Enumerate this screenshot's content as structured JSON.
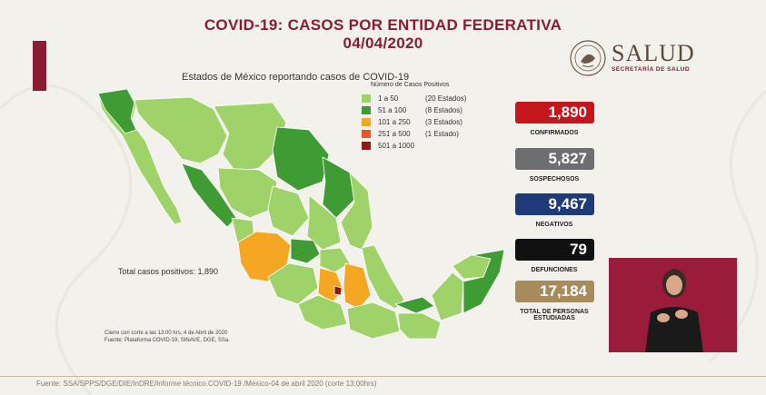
{
  "title_line1": "COVID-19: CASOS POR ENTIDAD FEDERATIVA",
  "title_line2": "04/04/2020",
  "logo": {
    "word": "SALUD",
    "subtitle": "SECRETARÍA DE SALUD",
    "emblem": "mexico-coat-of-arms-icon"
  },
  "map": {
    "title": "Estados de México reportando casos de COVID-19",
    "legend_heading": "Número de Casos Positivos",
    "legend": [
      {
        "range": "1 a   50",
        "count": "(20 Estados)",
        "color": "#9fd36a"
      },
      {
        "range": "51 a  100",
        "count": "(8 Estados)",
        "color": "#3f9b34"
      },
      {
        "range": "101 a  250",
        "count": "(3 Estados)",
        "color": "#f5a623"
      },
      {
        "range": "251 a  500",
        "count": "(1 Estado)",
        "color": "#e8562a"
      },
      {
        "range": "501 a 1000",
        "count": "",
        "color": "#8e1b1b"
      }
    ],
    "total": "Total casos positivos: 1,890",
    "note1": "Cierre con corte a las 13:00 hrs, 4 de Abril de 2020",
    "note2": "Fuente: Plataforma COVID-19, SINAVE, DGE, SSa."
  },
  "stats": [
    {
      "value": "1,890",
      "label": "CONFIRMADOS",
      "color": "#c4161c"
    },
    {
      "value": "5,827",
      "label": "SOSPECHOSOS",
      "color": "#6d6e70"
    },
    {
      "value": "9,467",
      "label": "NEGATIVOS",
      "color": "#1f3a78"
    },
    {
      "value": "79",
      "label": "DEFUNCIONES",
      "color": "#111111"
    },
    {
      "value": "17,184",
      "label": "TOTAL DE PERSONAS ESTUDIADAS",
      "color": "#a88b5c"
    }
  ],
  "source": "Fuente: SSA/SPPS/DGE/DIE/InDRE/Informe técnico.COVID-19 /México-04 de abril 2020 (corte 13:00hrs)"
}
